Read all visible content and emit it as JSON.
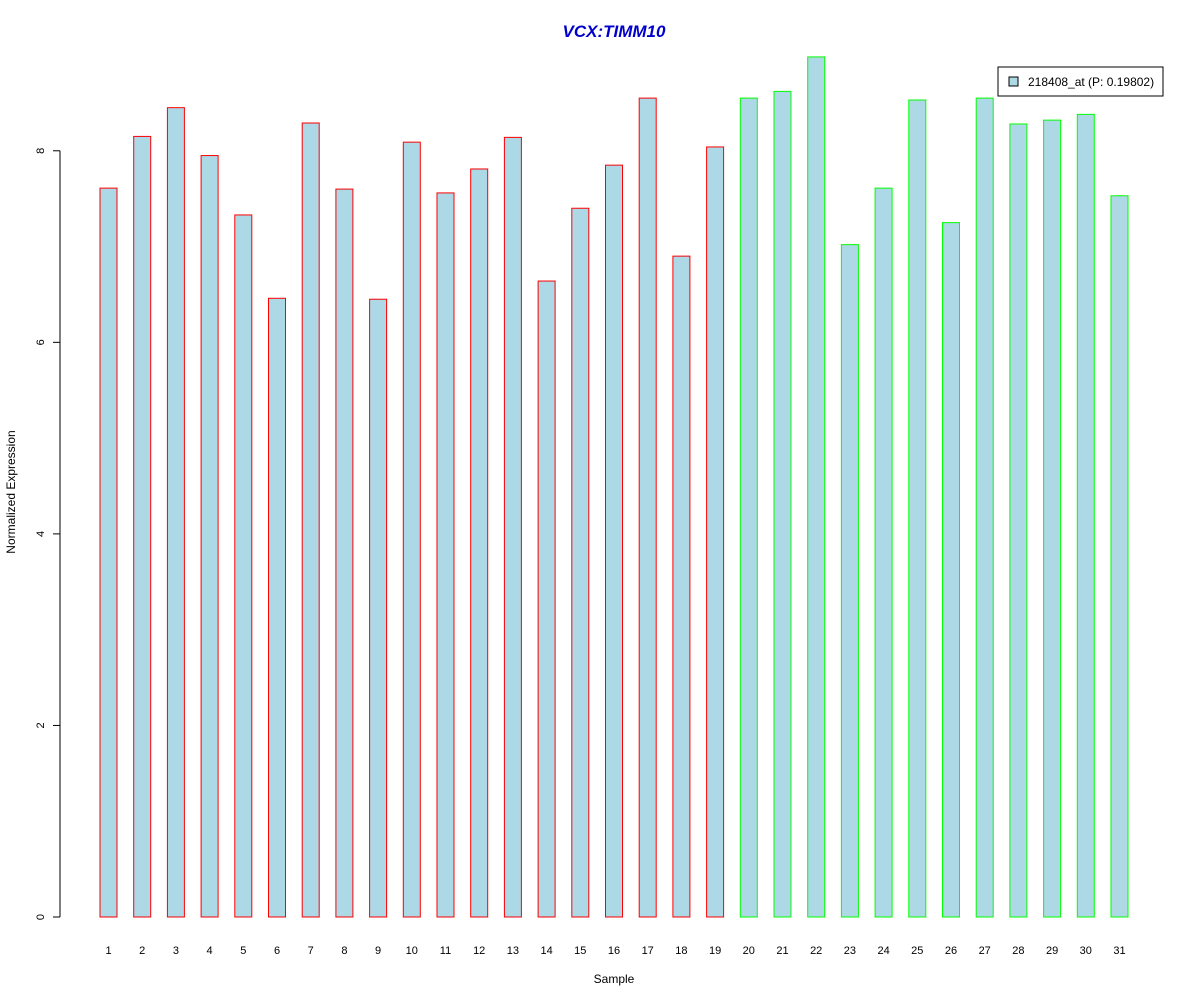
{
  "chart_data": {
    "type": "bar",
    "title": "VCX:TIMM10",
    "title_color": "#0000CC",
    "xlabel": "Sample",
    "ylabel": "Normalized Expression",
    "ylim": [
      0,
      9
    ],
    "yticks": [
      0,
      2,
      4,
      6,
      8
    ],
    "grid": false,
    "legend_position": "top-right",
    "legend": {
      "label": "218408_at (P: 0.19802)",
      "fill": "#ADD8E6"
    },
    "bar_fill": "#ADD8E6",
    "group_colors": {
      "group1": "#FF0000",
      "group2": "#00FF00"
    },
    "categories": [
      "1",
      "2",
      "3",
      "4",
      "5",
      "6",
      "7",
      "8",
      "9",
      "10",
      "11",
      "12",
      "13",
      "14",
      "15",
      "16",
      "17",
      "18",
      "19",
      "20",
      "21",
      "22",
      "23",
      "24",
      "25",
      "26",
      "27",
      "28",
      "29",
      "30",
      "31"
    ],
    "values": [
      7.61,
      8.15,
      8.45,
      7.95,
      7.33,
      6.46,
      8.29,
      7.6,
      6.45,
      8.09,
      7.56,
      7.81,
      8.14,
      6.64,
      7.4,
      7.85,
      8.55,
      6.9,
      8.04,
      8.55,
      8.62,
      8.98,
      7.02,
      7.61,
      8.53,
      7.25,
      8.55,
      8.28,
      8.32,
      8.38,
      7.53
    ],
    "groups": [
      1,
      1,
      1,
      1,
      1,
      1,
      1,
      1,
      1,
      1,
      1,
      1,
      1,
      1,
      1,
      1,
      1,
      1,
      1,
      2,
      2,
      2,
      2,
      2,
      2,
      2,
      2,
      2,
      2,
      2,
      2
    ]
  }
}
